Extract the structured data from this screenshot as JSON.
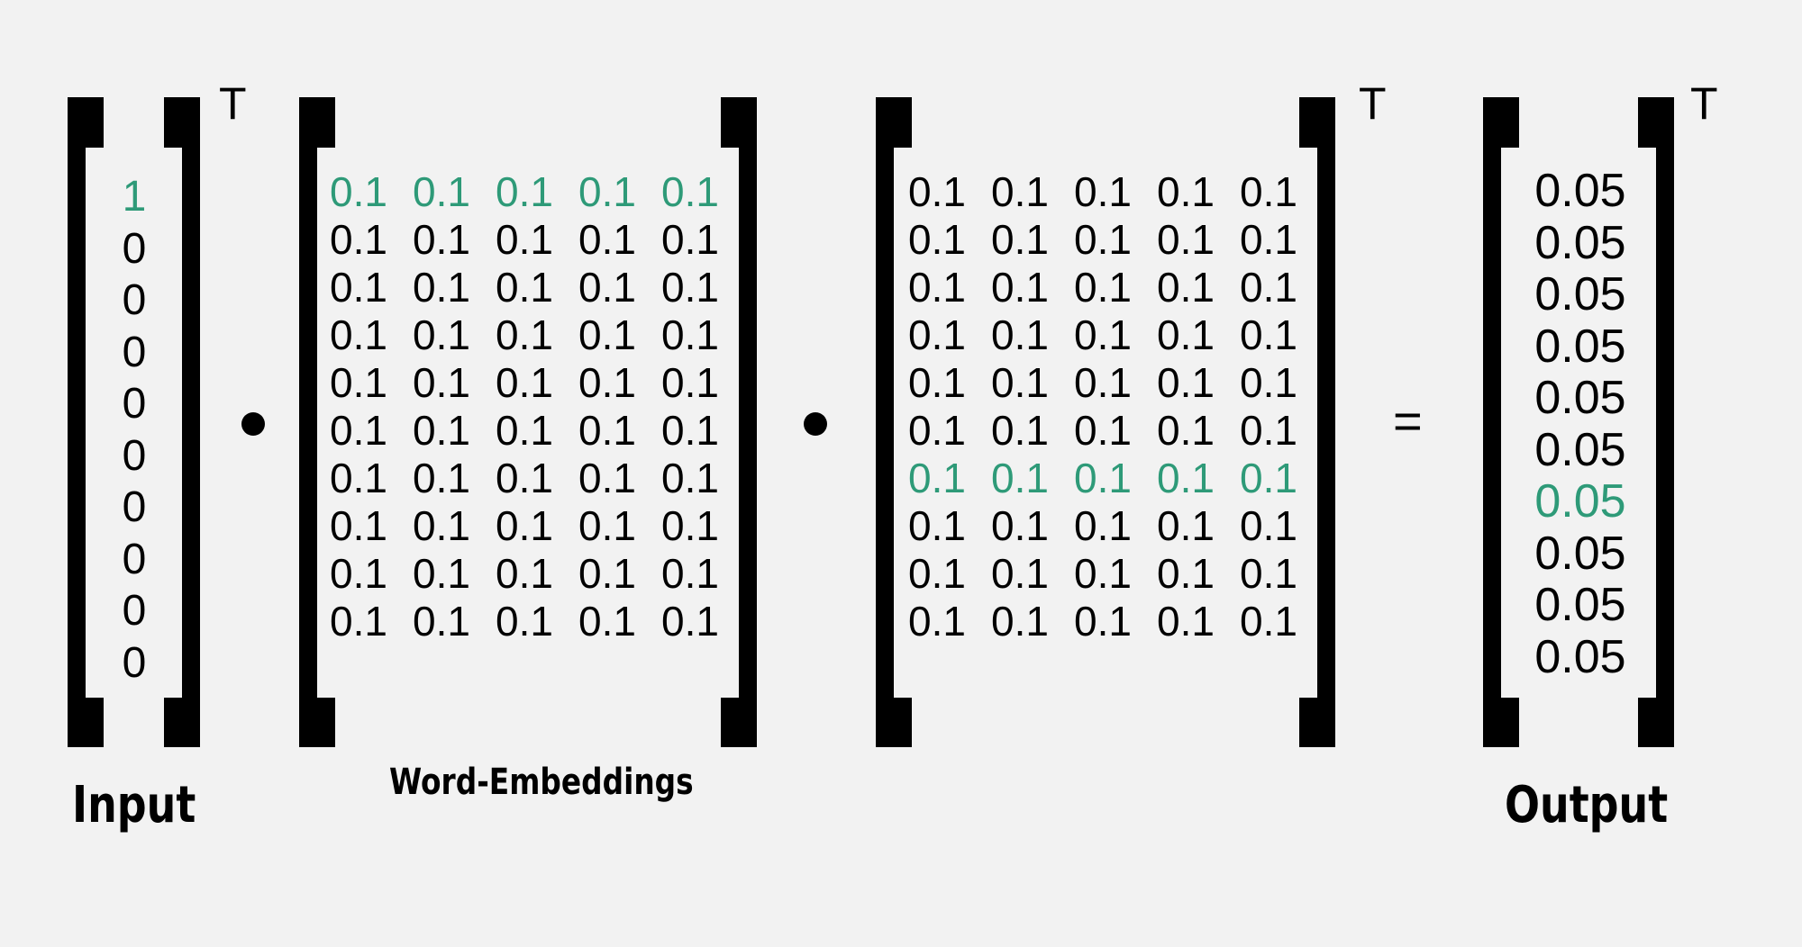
{
  "input": {
    "values": [
      "1",
      "0",
      "0",
      "0",
      "0",
      "0",
      "0",
      "0",
      "0",
      "0"
    ],
    "highlight_index": 0,
    "transpose": "T",
    "label": "Input"
  },
  "operators": {
    "dot": "•",
    "equals": "="
  },
  "embeddings": {
    "label": "Word-Embeddings",
    "rows": [
      [
        "0.1",
        "0.1",
        "0.1",
        "0.1",
        "0.1"
      ],
      [
        "0.1",
        "0.1",
        "0.1",
        "0.1",
        "0.1"
      ],
      [
        "0.1",
        "0.1",
        "0.1",
        "0.1",
        "0.1"
      ],
      [
        "0.1",
        "0.1",
        "0.1",
        "0.1",
        "0.1"
      ],
      [
        "0.1",
        "0.1",
        "0.1",
        "0.1",
        "0.1"
      ],
      [
        "0.1",
        "0.1",
        "0.1",
        "0.1",
        "0.1"
      ],
      [
        "0.1",
        "0.1",
        "0.1",
        "0.1",
        "0.1"
      ],
      [
        "0.1",
        "0.1",
        "0.1",
        "0.1",
        "0.1"
      ],
      [
        "0.1",
        "0.1",
        "0.1",
        "0.1",
        "0.1"
      ],
      [
        "0.1",
        "0.1",
        "0.1",
        "0.1",
        "0.1"
      ]
    ],
    "highlight_row": 0
  },
  "context": {
    "rows": [
      [
        "0.1",
        "0.1",
        "0.1",
        "0.1",
        "0.1"
      ],
      [
        "0.1",
        "0.1",
        "0.1",
        "0.1",
        "0.1"
      ],
      [
        "0.1",
        "0.1",
        "0.1",
        "0.1",
        "0.1"
      ],
      [
        "0.1",
        "0.1",
        "0.1",
        "0.1",
        "0.1"
      ],
      [
        "0.1",
        "0.1",
        "0.1",
        "0.1",
        "0.1"
      ],
      [
        "0.1",
        "0.1",
        "0.1",
        "0.1",
        "0.1"
      ],
      [
        "0.1",
        "0.1",
        "0.1",
        "0.1",
        "0.1"
      ],
      [
        "0.1",
        "0.1",
        "0.1",
        "0.1",
        "0.1"
      ],
      [
        "0.1",
        "0.1",
        "0.1",
        "0.1",
        "0.1"
      ],
      [
        "0.1",
        "0.1",
        "0.1",
        "0.1",
        "0.1"
      ]
    ],
    "highlight_row": 6,
    "transpose": "T"
  },
  "output": {
    "values": [
      "0.05",
      "0.05",
      "0.05",
      "0.05",
      "0.05",
      "0.05",
      "0.05",
      "0.05",
      "0.05",
      "0.05"
    ],
    "highlight_index": 6,
    "transpose": "T",
    "label": "Output"
  },
  "colors": {
    "highlight": "#2e9a78",
    "background": "#f2f2f2",
    "ink": "#000000"
  }
}
